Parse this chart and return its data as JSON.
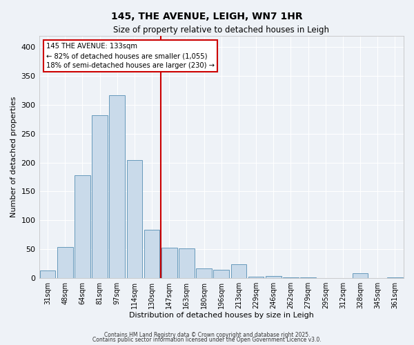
{
  "title": "145, THE AVENUE, LEIGH, WN7 1HR",
  "subtitle": "Size of property relative to detached houses in Leigh",
  "xlabel": "Distribution of detached houses by size in Leigh",
  "ylabel": "Number of detached properties",
  "bar_labels": [
    "31sqm",
    "48sqm",
    "64sqm",
    "81sqm",
    "97sqm",
    "114sqm",
    "130sqm",
    "147sqm",
    "163sqm",
    "180sqm",
    "196sqm",
    "213sqm",
    "229sqm",
    "246sqm",
    "262sqm",
    "279sqm",
    "295sqm",
    "312sqm",
    "328sqm",
    "345sqm",
    "361sqm"
  ],
  "bar_values": [
    13,
    54,
    178,
    282,
    317,
    204,
    84,
    52,
    51,
    16,
    14,
    24,
    2,
    3,
    1,
    1,
    0,
    0,
    8,
    0,
    1
  ],
  "bar_color": "#c9daea",
  "bar_edgecolor": "#6699bb",
  "vline_pos": 6.5,
  "vline_color": "#cc0000",
  "annotation_title": "145 THE AVENUE: 133sqm",
  "annotation_line1": "← 82% of detached houses are smaller (1,055)",
  "annotation_line2": "18% of semi-detached houses are larger (230) →",
  "annotation_box_edgecolor": "#cc0000",
  "ylim": [
    0,
    420
  ],
  "yticks": [
    0,
    50,
    100,
    150,
    200,
    250,
    300,
    350,
    400
  ],
  "background_color": "#eef2f7",
  "grid_color": "#ffffff",
  "footer1": "Contains HM Land Registry data © Crown copyright and database right 2025.",
  "footer2": "Contains public sector information licensed under the Open Government Licence v3.0."
}
